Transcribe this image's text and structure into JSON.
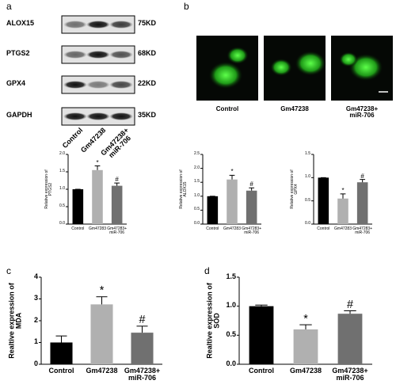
{
  "panels": [
    "a",
    "b",
    "c",
    "d"
  ],
  "blot": {
    "proteins": [
      "ALOX15",
      "PTGS2",
      "GPX4",
      "GAPDH"
    ],
    "sizes": [
      "75KD",
      "68KD",
      "22KD",
      "35KD"
    ],
    "lanes": [
      "Control",
      "Gm47238",
      "Gm47238+\nmiR-706"
    ]
  },
  "imaging": {
    "groups": [
      "Control",
      "Gm47238",
      "Gm47238+\nmiR-706"
    ]
  },
  "chart_data": [
    {
      "type": "bar",
      "ylabel": "Relative expression of\nPTGS2",
      "categories": [
        "Control",
        "Gm47283",
        "Gm47283+\nmiR-706"
      ],
      "values": [
        1.0,
        1.55,
        1.1
      ],
      "errors": [
        0,
        0.12,
        0.08
      ],
      "colors": [
        "#000000",
        "#b0b0b0",
        "#707070"
      ],
      "annotations": [
        null,
        "*",
        "#"
      ],
      "ylim": [
        0,
        2
      ],
      "yticks": [
        {
          "value": 0,
          "label": "0.0"
        },
        {
          "value": 0.5,
          "label": "0.5"
        },
        {
          "value": 1,
          "label": "1.0"
        },
        {
          "value": 1.5,
          "label": "1.5"
        },
        {
          "value": 2,
          "label": "2.0"
        }
      ]
    },
    {
      "type": "bar",
      "ylabel": "Relative expression of\nALOX15",
      "categories": [
        "Control",
        "Gm47283",
        "Gm47283+\nmiR-706"
      ],
      "values": [
        1.0,
        1.6,
        1.2
      ],
      "errors": [
        0,
        0.15,
        0.1
      ],
      "colors": [
        "#000000",
        "#b0b0b0",
        "#707070"
      ],
      "annotations": [
        null,
        "*",
        "#"
      ],
      "ylim": [
        0,
        2.5
      ],
      "yticks": [
        {
          "value": 0,
          "label": "0.0"
        },
        {
          "value": 0.5,
          "label": "0.5"
        },
        {
          "value": 1,
          "label": "1.0"
        },
        {
          "value": 1.5,
          "label": "1.5"
        },
        {
          "value": 2,
          "label": "2.0"
        },
        {
          "value": 2.5,
          "label": "2.5"
        }
      ]
    },
    {
      "type": "bar",
      "ylabel": "Relative expression of\nGPX4",
      "categories": [
        "Control",
        "Gm47283",
        "Gm47283+\nmiR-706"
      ],
      "values": [
        1.0,
        0.55,
        0.9
      ],
      "errors": [
        0,
        0.1,
        0.06
      ],
      "colors": [
        "#000000",
        "#b0b0b0",
        "#707070"
      ],
      "annotations": [
        null,
        "*",
        "#"
      ],
      "ylim": [
        0,
        1.5
      ],
      "yticks": [
        {
          "value": 0,
          "label": "0.0"
        },
        {
          "value": 0.5,
          "label": "0.5"
        },
        {
          "value": 1,
          "label": "1.0"
        },
        {
          "value": 1.5,
          "label": "1.5"
        }
      ]
    },
    {
      "type": "bar",
      "ylabel": "Realtive expression of\nMDA",
      "categories": [
        "Control",
        "Gm47238",
        "Gm47238+\nmiR-706"
      ],
      "values": [
        1.0,
        2.75,
        1.45
      ],
      "errors": [
        0.3,
        0.35,
        0.3
      ],
      "colors": [
        "#000000",
        "#b0b0b0",
        "#707070"
      ],
      "annotations": [
        null,
        "*",
        "#"
      ],
      "ylim": [
        0,
        4
      ],
      "yticks": [
        0,
        1,
        2,
        3,
        4
      ]
    },
    {
      "type": "bar",
      "ylabel": "Realtive expression of\nSOD",
      "categories": [
        "Control",
        "Gm47238",
        "Gm47238+\nmiR-706"
      ],
      "values": [
        1.0,
        0.6,
        0.87
      ],
      "errors": [
        0.02,
        0.08,
        0.05
      ],
      "colors": [
        "#000000",
        "#b0b0b0",
        "#707070"
      ],
      "annotations": [
        null,
        "*",
        "#"
      ],
      "ylim": [
        0,
        1.5
      ],
      "yticks": [
        {
          "value": 0,
          "label": "0.0"
        },
        {
          "value": 0.5,
          "label": "0.5"
        },
        {
          "value": 1,
          "label": "1.0"
        },
        {
          "value": 1.5,
          "label": "1.5"
        }
      ]
    }
  ]
}
